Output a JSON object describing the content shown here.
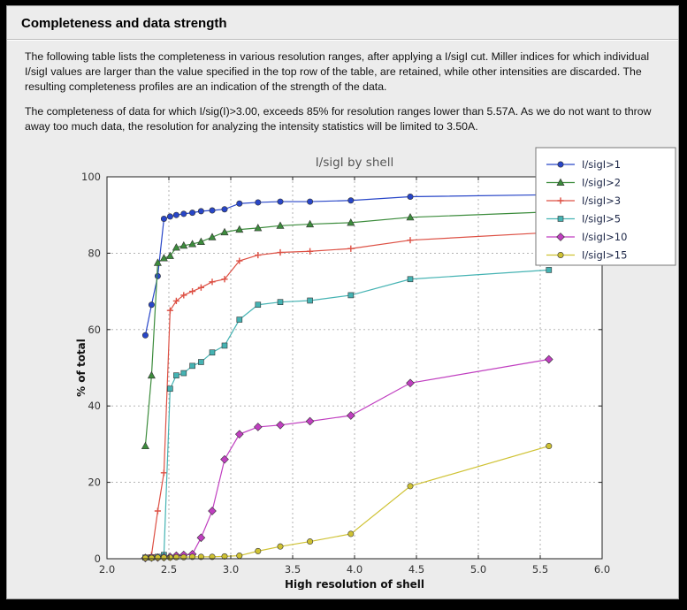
{
  "header": {
    "title": "Completeness and data strength"
  },
  "paragraphs": [
    "The following table lists the completeness in various resolution ranges, after applying a I/sigI cut. Miller indices for which individual I/sigI values are larger than the value specified in the top row of the table, are retained, while other intensities are discarded. The resulting completeness profiles are an indication of the strength of the data.",
    "The completeness of data for which I/sig(I)>3.00, exceeds  85% for resolution ranges lower than 5.57A. As we do not want to throw away too much data, the resolution for analyzing the intensity statistics will be limited to 3.50A."
  ],
  "colors": {
    "panel_bg": "#ececec",
    "plot_bg": "#ffffff",
    "grid": "#aaaaaa",
    "frame": "#222222",
    "tick_text": "#333333",
    "axis_label_text": "#111111",
    "title_text": "#555555",
    "legend_text": "#202a4a",
    "legend_border": "#777777"
  },
  "chart_data": {
    "type": "line",
    "title": "I/sigI by shell",
    "xlabel": "High resolution of shell",
    "ylabel": "% of total",
    "xlim": [
      2.0,
      6.0
    ],
    "ylim": [
      0,
      100
    ],
    "x_ticks": [
      2.0,
      2.5,
      3.0,
      3.5,
      4.0,
      4.5,
      5.0,
      5.5,
      6.0
    ],
    "y_ticks": [
      0,
      20,
      40,
      60,
      80,
      100
    ],
    "grid": true,
    "legend_position": "top-right",
    "x": [
      2.31,
      2.36,
      2.41,
      2.46,
      2.51,
      2.56,
      2.62,
      2.69,
      2.76,
      2.85,
      2.95,
      3.07,
      3.22,
      3.4,
      3.64,
      3.97,
      4.45,
      5.57
    ],
    "series": [
      {
        "name": "I/sigI>1",
        "color": "#2846c8",
        "marker": "circle",
        "values": [
          58.5,
          66.5,
          74.0,
          89.0,
          89.6,
          90.0,
          90.3,
          90.6,
          91.0,
          91.2,
          91.5,
          93.0,
          93.3,
          93.5,
          93.5,
          93.8,
          94.8,
          95.3
        ]
      },
      {
        "name": "I/sigI>2",
        "color": "#3c8c3c",
        "marker": "triangle",
        "values": [
          29.5,
          48.0,
          77.5,
          78.7,
          79.3,
          81.5,
          82.0,
          82.4,
          83.0,
          84.2,
          85.5,
          86.2,
          86.6,
          87.2,
          87.6,
          88.0,
          89.4,
          90.8
        ]
      },
      {
        "name": "I/sigI>3",
        "color": "#dd5044",
        "marker": "plus",
        "values": [
          0.3,
          1.0,
          12.5,
          22.5,
          65.0,
          67.5,
          69.0,
          70.0,
          71.0,
          72.5,
          73.2,
          78.0,
          79.5,
          80.2,
          80.5,
          81.2,
          83.4,
          85.4
        ]
      },
      {
        "name": "I/sigI>5",
        "color": "#45b3b3",
        "marker": "square",
        "values": [
          0.3,
          0.3,
          0.5,
          1.0,
          44.5,
          48.0,
          48.6,
          50.5,
          51.5,
          54.0,
          55.8,
          62.6,
          66.5,
          67.2,
          67.6,
          69.0,
          73.2,
          75.6
        ]
      },
      {
        "name": "I/sigI>10",
        "color": "#c03fc0",
        "marker": "diamond",
        "values": [
          0.2,
          0.3,
          0.3,
          0.4,
          0.5,
          0.8,
          1.0,
          1.2,
          5.5,
          12.5,
          26.0,
          32.6,
          34.5,
          35.0,
          36.0,
          37.5,
          46.0,
          52.2
        ]
      },
      {
        "name": "I/sigI>15",
        "color": "#cfc233",
        "marker": "circle",
        "values": [
          0.2,
          0.2,
          0.3,
          0.3,
          0.3,
          0.4,
          0.4,
          0.5,
          0.5,
          0.5,
          0.6,
          0.8,
          2.0,
          3.2,
          4.5,
          6.5,
          19.0,
          29.5
        ]
      }
    ]
  }
}
